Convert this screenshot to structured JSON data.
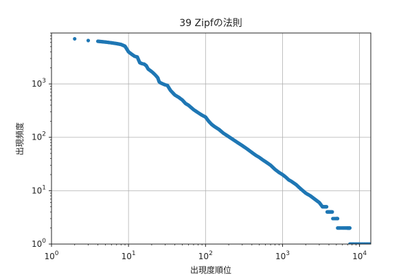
{
  "chart_data": {
    "type": "scatter",
    "title": "39 Zipfの法則",
    "xlabel": "出現度順位",
    "ylabel": "出現頻度",
    "xscale": "log",
    "yscale": "log",
    "xlim": [
      1,
      14000
    ],
    "ylim": [
      1,
      9000
    ],
    "grid": true,
    "marker_color": "#1f77b4",
    "x_ticks": [
      {
        "value": 1,
        "base": "10",
        "exp": "0"
      },
      {
        "value": 10,
        "base": "10",
        "exp": "1"
      },
      {
        "value": 100,
        "base": "10",
        "exp": "2"
      },
      {
        "value": 1000,
        "base": "10",
        "exp": "3"
      },
      {
        "value": 10000,
        "base": "10",
        "exp": "4"
      }
    ],
    "y_ticks": [
      {
        "value": 1,
        "base": "10",
        "exp": "0"
      },
      {
        "value": 10,
        "base": "10",
        "exp": "1"
      },
      {
        "value": 100,
        "base": "10",
        "exp": "2"
      },
      {
        "value": 1000,
        "base": "10",
        "exp": "3"
      }
    ],
    "points": [
      [
        2,
        7000
      ],
      [
        3,
        6500
      ],
      [
        4,
        6300
      ],
      [
        5,
        6100
      ],
      [
        6,
        5900
      ],
      [
        7,
        5700
      ],
      [
        8,
        5500
      ],
      [
        9,
        5100
      ],
      [
        10,
        4000
      ],
      [
        11,
        3600
      ],
      [
        12,
        3300
      ],
      [
        13,
        3200
      ],
      [
        14,
        2500
      ],
      [
        15,
        2400
      ],
      [
        16,
        2350
      ],
      [
        17,
        2200
      ],
      [
        18,
        1900
      ],
      [
        19,
        1800
      ],
      [
        20,
        1700
      ],
      [
        21,
        1600
      ],
      [
        22,
        1500
      ],
      [
        23,
        1400
      ],
      [
        24,
        1300
      ],
      [
        25,
        1100
      ],
      [
        26,
        1050
      ],
      [
        28,
        1000
      ],
      [
        30,
        960
      ],
      [
        32,
        940
      ],
      [
        35,
        760
      ],
      [
        40,
        620
      ],
      [
        45,
        560
      ],
      [
        50,
        500
      ],
      [
        55,
        430
      ],
      [
        60,
        400
      ],
      [
        70,
        330
      ],
      [
        80,
        290
      ],
      [
        90,
        260
      ],
      [
        100,
        240
      ],
      [
        110,
        200
      ],
      [
        120,
        175
      ],
      [
        130,
        160
      ],
      [
        150,
        140
      ],
      [
        170,
        120
      ],
      [
        200,
        103
      ],
      [
        230,
        90
      ],
      [
        260,
        80
      ],
      [
        300,
        70
      ],
      [
        350,
        60
      ],
      [
        400,
        52
      ],
      [
        450,
        46
      ],
      [
        500,
        42
      ],
      [
        550,
        38
      ],
      [
        600,
        35
      ],
      [
        700,
        30
      ],
      [
        800,
        25
      ],
      [
        900,
        22
      ],
      [
        1000,
        20
      ],
      [
        1100,
        18
      ],
      [
        1200,
        16
      ],
      [
        1300,
        15
      ],
      [
        1500,
        13
      ],
      [
        1700,
        11
      ],
      [
        2000,
        9
      ],
      [
        2300,
        8
      ],
      [
        2600,
        7
      ],
      [
        3000,
        6
      ],
      [
        3300,
        5
      ],
      [
        3800,
        4
      ],
      [
        4500,
        3
      ],
      [
        5000,
        3
      ],
      [
        5200,
        2
      ],
      [
        5600,
        2
      ],
      [
        6000,
        2
      ],
      [
        6500,
        2
      ],
      [
        7000,
        2
      ],
      [
        7500,
        1
      ],
      [
        8500,
        1
      ],
      [
        9500,
        1
      ],
      [
        10500,
        1
      ],
      [
        11500,
        1
      ],
      [
        12500,
        1
      ],
      [
        13500,
        1
      ]
    ]
  }
}
